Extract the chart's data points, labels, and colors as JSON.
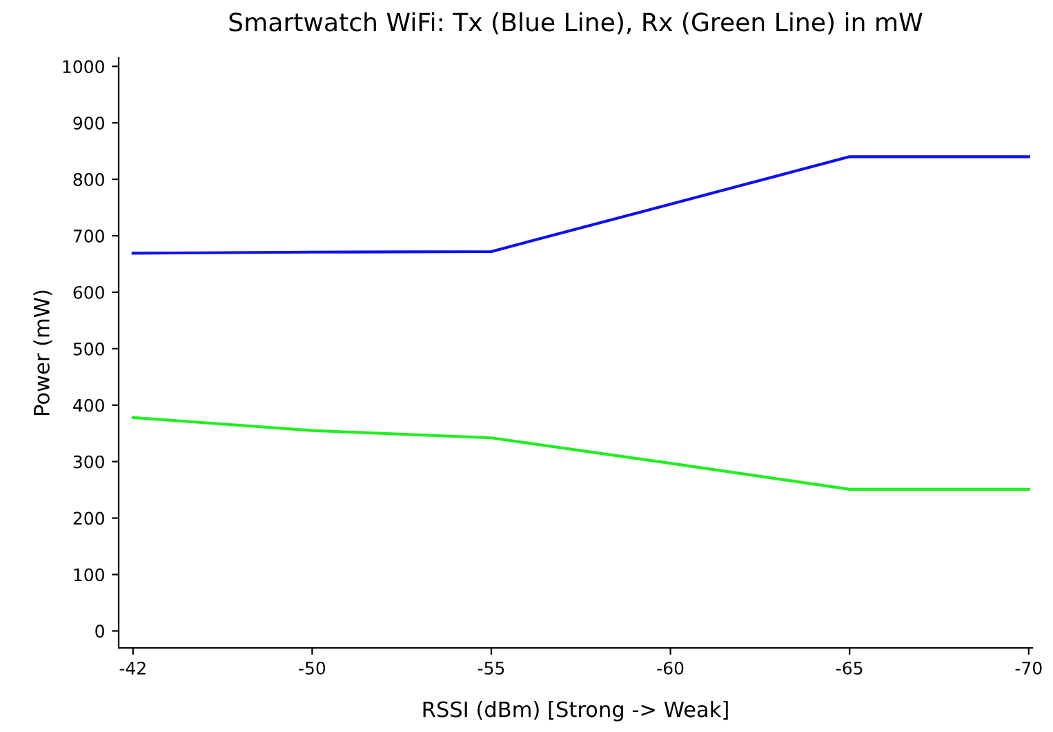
{
  "chart_data": {
    "type": "line",
    "title": "Smartwatch WiFi: Tx (Blue Line), Rx (Green Line) in mW",
    "xlabel": "RSSI (dBm) [Strong -> Weak]",
    "ylabel": "Power (mW)",
    "categories": [
      "-42",
      "-50",
      "-55",
      "-60",
      "-65",
      "-70"
    ],
    "series": [
      {
        "color": "#1010ee",
        "values": [
          669,
          671,
          672,
          756,
          840,
          840
        ]
      },
      {
        "color": "#22ee22",
        "values": [
          378,
          355,
          342,
          297,
          251,
          251
        ]
      }
    ],
    "ylim": [
      -30,
      1015
    ],
    "yticks": [
      0,
      100,
      200,
      300,
      400,
      500,
      600,
      700,
      800,
      900,
      1000
    ],
    "grid": false,
    "legend": false,
    "marker": "none",
    "line_style": "solid"
  }
}
